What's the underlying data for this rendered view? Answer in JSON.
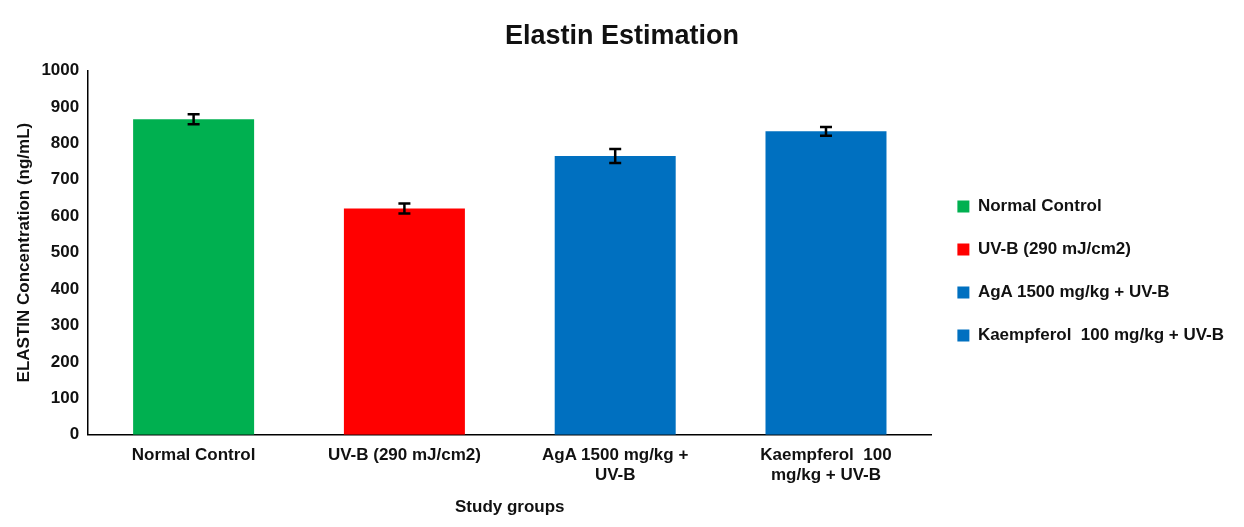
{
  "chart_data": {
    "type": "bar",
    "title": "Elastin Estimation",
    "xlabel": "Study groups",
    "ylabel": "ELASTIN Concentration (ng/mL)",
    "categories": [
      "Normal Control",
      "UV-B (290 mJ/cm2)",
      "AgA 1500 mg/kg + UV-B",
      "Kaempferol  100 mg/kg + UV-B"
    ],
    "series": [
      {
        "name": "Normal Control",
        "color": "#00b050",
        "values": [
          866,
          null,
          null,
          null
        ],
        "errors": [
          14,
          null,
          null,
          null
        ]
      },
      {
        "name": "UV-B (290 mJ/cm2)",
        "color": "#ff0000",
        "values": [
          null,
          621,
          null,
          null
        ],
        "errors": [
          null,
          14,
          null,
          null
        ]
      },
      {
        "name": "AgA 1500 mg/kg + UV-B",
        "color": "#0070c0",
        "values": [
          null,
          null,
          765,
          null
        ],
        "errors": [
          null,
          null,
          19,
          null
        ]
      },
      {
        "name": "Kaempferol  100 mg/kg + UV-B",
        "color": "#0070c0",
        "values": [
          null,
          null,
          null,
          833
        ],
        "errors": [
          null,
          null,
          null,
          12
        ]
      }
    ],
    "ylim": [
      0,
      1000
    ],
    "yticks": [
      0,
      100,
      200,
      300,
      400,
      500,
      600,
      700,
      800,
      900,
      1000
    ],
    "grid": false,
    "legend": "right"
  }
}
